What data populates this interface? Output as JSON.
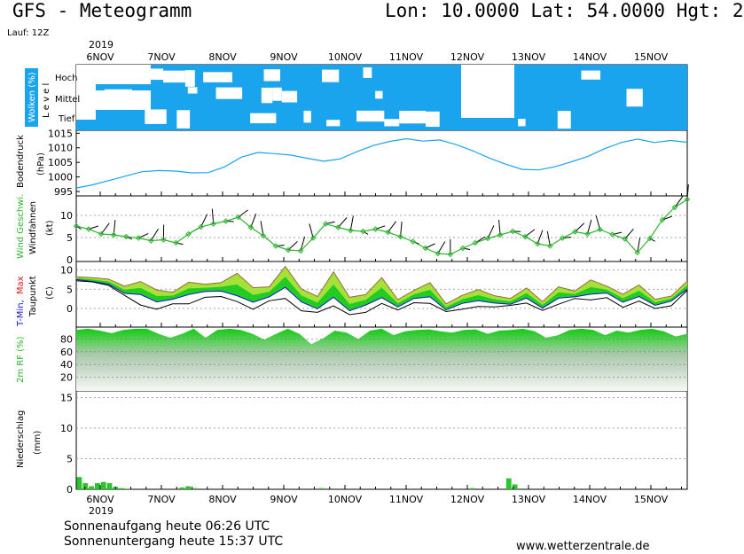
{
  "header": {
    "title": "GFS - Meteogramm",
    "coords": "Lon: 10.0000 Lat: 54.0000 Hgt: 2",
    "run": "Lauf: 12Z"
  },
  "footer": {
    "sunrise": "Sonnenaufgang heute 06:26 UTC",
    "sunset": "Sonnenuntergang heute 15:37 UTC",
    "site": "www.wetterzentrale.de"
  },
  "colors": {
    "cloud": "#1aa4ee",
    "pressure": "#1aa4ee",
    "wind": "#2db52d",
    "tmin": "#1414c8",
    "tmax": "#e01414",
    "rh_top": "#1ec81e",
    "rain": "#2cc42c"
  },
  "chart_data": {
    "type": "line",
    "year": "2019",
    "dates": [
      "6NOV",
      "7NOV",
      "8NOV",
      "9NOV",
      "10NOV",
      "11NOV",
      "12NOV",
      "13NOV",
      "14NOV",
      "15NOV"
    ],
    "panels": {
      "clouds": {
        "label": "Wolken (%)",
        "level_label": "L e v e l",
        "levels": [
          "Hoch",
          "Mittel",
          "Tief"
        ]
      },
      "pressure": {
        "label": "Bodendruck",
        "unit": "(hPa)",
        "ticks": [
          995,
          1000,
          1005,
          1010,
          1015
        ],
        "values": [
          996.2,
          997.3,
          998.8,
          1000.3,
          1001.8,
          1002.2,
          1002.0,
          1001.4,
          1001.5,
          1003.5,
          1006.8,
          1008.4,
          1008.0,
          1007.5,
          1006.4,
          1005.4,
          1006.2,
          1008.7,
          1010.8,
          1012.2,
          1013.1,
          1012.3,
          1012.7,
          1011.1,
          1009.0,
          1006.5,
          1004.4,
          1002.6,
          1002.4,
          1003.5,
          1005.2,
          1007.1,
          1009.7,
          1011.8,
          1013.0,
          1011.8,
          1012.5,
          1011.9
        ]
      },
      "wind": {
        "label": "Wind Geschwi.",
        "sublabel": "Windfahnen",
        "unit": "(kt)",
        "ticks": [
          0,
          5,
          10
        ],
        "values": [
          7.6,
          6.9,
          5.8,
          5.6,
          5.2,
          4.9,
          4.3,
          4.5,
          3.8,
          5.8,
          7.4,
          8.1,
          8.7,
          9.6,
          7.3,
          5.4,
          3.1,
          2.2,
          2.0,
          4.9,
          8.1,
          7.3,
          6.6,
          6.4,
          6.9,
          6.2,
          5.2,
          4.1,
          2.6,
          1.4,
          1.2,
          2.6,
          3.8,
          4.8,
          5.6,
          6.4,
          5.2,
          3.6,
          3.1,
          4.9,
          6.3,
          5.8,
          6.8,
          5.7,
          4.7,
          1.6,
          4.8,
          9.0,
          11.8,
          13.6
        ]
      },
      "temperature": {
        "label_1": "T-Min,",
        "label_2": "Max",
        "sublabel": "Taupunkt",
        "unit": "(C)",
        "ticks": [
          0,
          5,
          10
        ],
        "tmax": [
          8.2,
          8.0,
          7.6,
          5.8,
          7.0,
          4.8,
          4.2,
          6.8,
          6.3,
          6.7,
          9.1,
          5.4,
          5.6,
          10.9,
          5.1,
          3.1,
          9.5,
          2.9,
          3.6,
          8.0,
          2.3,
          4.7,
          6.7,
          1.2,
          3.4,
          4.9,
          3.3,
          2.6,
          5.3,
          1.8,
          5.6,
          4.5,
          7.4,
          5.8,
          3.7,
          6.1,
          2.4,
          3.2,
          7.1
        ],
        "tmin": [
          7.5,
          7.0,
          6.3,
          3.9,
          3.6,
          1.7,
          2.4,
          3.6,
          4.4,
          4.5,
          3.3,
          1.6,
          3.0,
          5.5,
          1.7,
          -0.1,
          2.9,
          -0.6,
          0.9,
          2.8,
          0.4,
          2.6,
          3.0,
          -0.4,
          1.3,
          2.0,
          1.4,
          1.1,
          2.7,
          0.1,
          2.7,
          3.0,
          3.7,
          4.0,
          1.6,
          3.1,
          0.8,
          1.9,
          5.0
        ],
        "dewpoint": [
          7.2,
          6.9,
          6.0,
          3.4,
          0.9,
          -0.2,
          1.2,
          1.2,
          2.9,
          3.1,
          1.8,
          -0.2,
          2.0,
          2.6,
          -0.6,
          -1.0,
          0.7,
          -1.6,
          -1.0,
          1.3,
          -0.4,
          1.5,
          1.3,
          -0.8,
          -0.2,
          0.5,
          0.4,
          0.8,
          1.4,
          -0.5,
          1.1,
          2.6,
          2.2,
          2.8,
          0.3,
          1.9,
          0.0,
          0.7,
          4.7
        ]
      },
      "humidity": {
        "label": "2m RF (%)",
        "ticks": [
          20,
          40,
          60,
          80
        ],
        "values": [
          94,
          96,
          93,
          89,
          94,
          96,
          96,
          88,
          82,
          88,
          96,
          82,
          94,
          96,
          94,
          88,
          79,
          88,
          96,
          88,
          72,
          81,
          93,
          90,
          80,
          93,
          96,
          86,
          92,
          94,
          95,
          92,
          90,
          94,
          95,
          88,
          93,
          94,
          96,
          92,
          82,
          86,
          94,
          96,
          94,
          86,
          93,
          90,
          94,
          96,
          92,
          84,
          88
        ]
      },
      "precip": {
        "label": "Niederschlag",
        "unit": "(mm)",
        "ticks": [
          0,
          5,
          10,
          15
        ],
        "values": [
          2.0,
          1.0,
          0.5,
          1.0,
          1.2,
          1.0,
          0.4,
          0.2,
          0.1,
          0,
          0,
          0,
          0,
          0,
          0,
          0,
          0,
          0.3,
          0.5,
          0.2,
          0,
          0,
          0,
          0,
          0,
          0,
          0,
          0,
          0,
          0,
          0,
          0,
          0,
          0,
          0,
          0,
          0,
          0,
          0,
          0,
          0.2,
          0,
          0,
          0,
          0,
          0,
          0,
          0,
          0,
          0,
          0,
          0,
          0,
          0,
          0,
          0,
          0,
          0,
          0,
          0,
          0,
          0,
          0,
          0,
          0,
          0.2,
          0,
          0,
          0,
          0,
          0,
          1.8,
          0.8,
          0,
          0,
          0,
          0,
          0,
          0,
          0,
          0,
          0,
          0,
          0,
          0,
          0,
          0,
          0,
          0,
          0,
          0,
          0,
          0,
          0,
          0,
          0,
          0,
          0,
          0,
          0,
          0
        ]
      }
    }
  }
}
